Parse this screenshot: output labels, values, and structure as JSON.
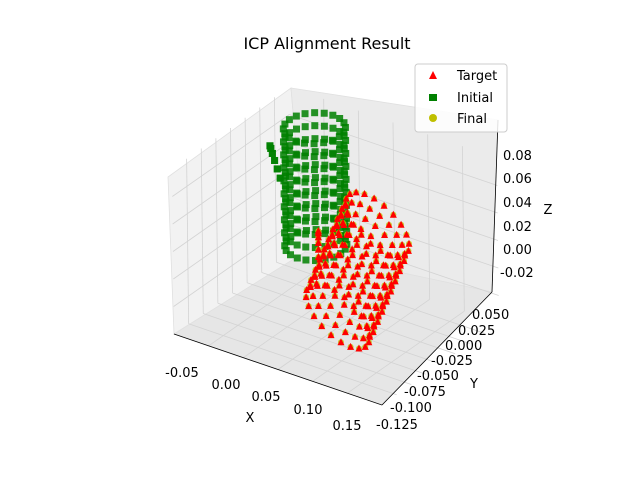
{
  "chart_data": {
    "type": "scatter3d",
    "title": "ICP Alignment Result",
    "xlabel": "X",
    "ylabel": "Y",
    "zlabel": "Z",
    "xlim": [
      -0.08,
      0.17
    ],
    "ylim": [
      -0.13,
      0.06
    ],
    "zlim": [
      -0.03,
      0.09
    ],
    "x_ticks": [
      "-0.05",
      "0.00",
      "0.05",
      "0.10",
      "0.15"
    ],
    "y_ticks": [
      "-0.125",
      "-0.100",
      "-0.075",
      "-0.050",
      "-0.025",
      "0.000",
      "0.025",
      "0.050"
    ],
    "z_ticks": [
      "-0.02",
      "0.00",
      "0.02",
      "0.04",
      "0.06",
      "0.08"
    ],
    "grid": true,
    "legend_position": "top-right",
    "series": [
      {
        "name": "Target",
        "marker": "triangle",
        "color": "#ff0000",
        "shape": "mug-like cylinder with handle, tilted",
        "center": [
          0.075,
          -0.04,
          0.02
        ],
        "radius": 0.035,
        "z_range": [
          -0.02,
          0.06
        ]
      },
      {
        "name": "Initial",
        "marker": "square",
        "color": "#008000",
        "shape": "upright mug-like cylinder with handle",
        "center": [
          -0.02,
          0.02,
          0.04
        ],
        "radius": 0.03,
        "z_range": [
          0.0,
          0.085
        ]
      },
      {
        "name": "Final",
        "marker": "circle",
        "color": "#bfbf00",
        "shape": "aligned onto target",
        "center": [
          0.075,
          -0.04,
          0.02
        ],
        "radius": 0.035,
        "z_range": [
          -0.02,
          0.06
        ]
      }
    ]
  }
}
